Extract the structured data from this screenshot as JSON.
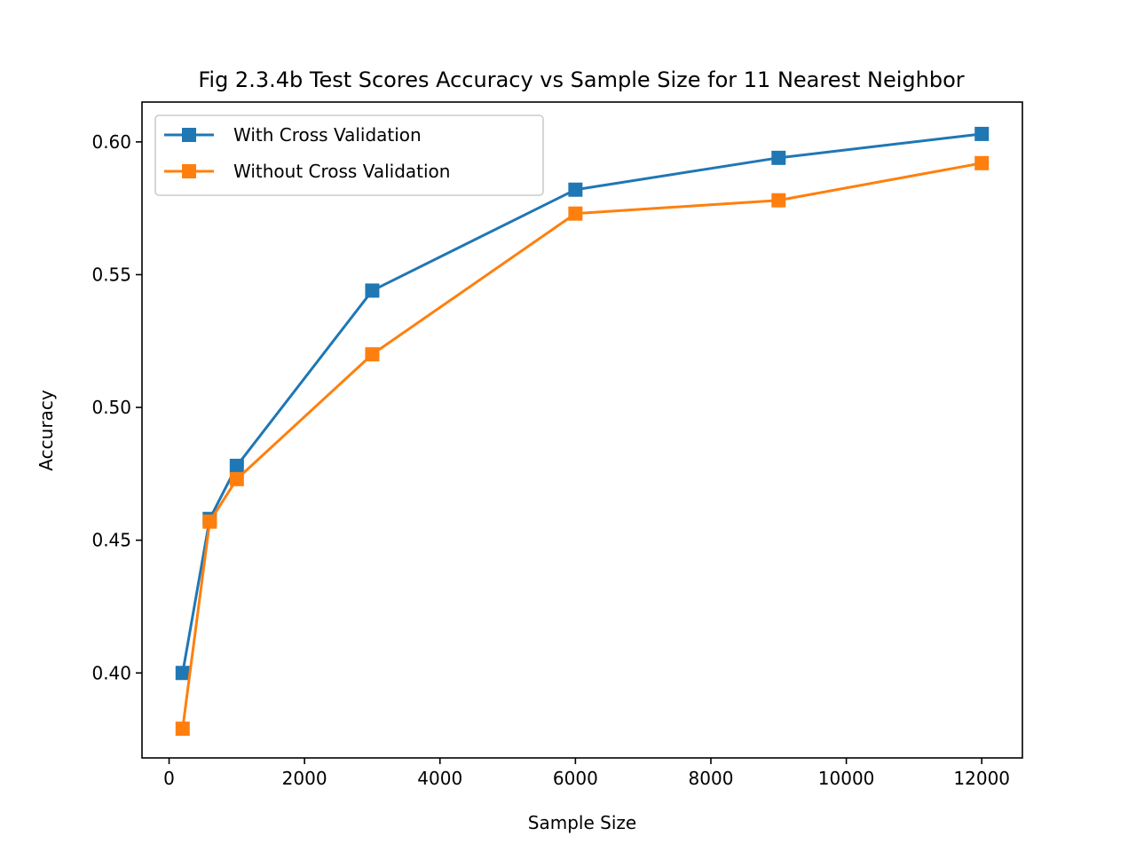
{
  "chart_data": {
    "type": "line",
    "title": "Fig 2.3.4b Test Scores Accuracy vs Sample Size for 11 Nearest Neighbor",
    "xlabel": "Sample Size",
    "ylabel": "Accuracy",
    "xlim": [
      -400,
      12600
    ],
    "ylim": [
      0.368,
      0.615
    ],
    "x_ticks": [
      0,
      2000,
      4000,
      6000,
      8000,
      10000,
      12000
    ],
    "x_tick_labels": [
      "0",
      "2000",
      "4000",
      "6000",
      "8000",
      "10000",
      "12000"
    ],
    "y_ticks": [
      0.4,
      0.45,
      0.5,
      0.55,
      0.6
    ],
    "y_tick_labels": [
      "0.40",
      "0.45",
      "0.50",
      "0.55",
      "0.60"
    ],
    "grid": false,
    "legend_position": "upper-left",
    "marker": "square",
    "x": [
      200,
      600,
      1000,
      3000,
      6000,
      9000,
      12000
    ],
    "series": [
      {
        "name": "With Cross Validation",
        "color": "#1f77b4",
        "values": [
          0.4,
          0.458,
          0.478,
          0.544,
          0.582,
          0.594,
          0.603
        ]
      },
      {
        "name": "Without Cross Validation",
        "color": "#ff7f0e",
        "values": [
          0.379,
          0.457,
          0.473,
          0.52,
          0.573,
          0.578,
          0.592
        ]
      }
    ]
  }
}
